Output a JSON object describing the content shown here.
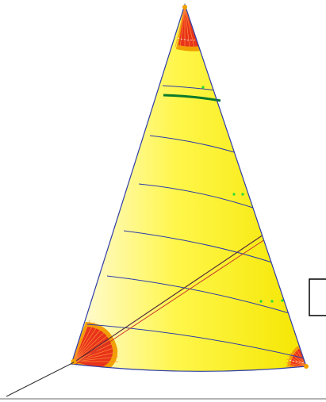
{
  "sail": {
    "fill_light": "#fffbe0",
    "fill_main": "#fff64a",
    "fill_edge": "#f4e600",
    "outline_color": "#2f3da8",
    "batten_color": "#2f3da8",
    "draft_stripe_color": "#0a7a2a",
    "reinforcement_outer": "#f0a000",
    "reinforcement_inner": "#e8341a",
    "diagonal_color_dark": "#5a2a3a",
    "diagonal_color_red": "#c8342a",
    "marker_color": "#22dd33"
  },
  "overlay": {
    "box_color": "#000000",
    "baseline_color": "#6a6a6a"
  }
}
